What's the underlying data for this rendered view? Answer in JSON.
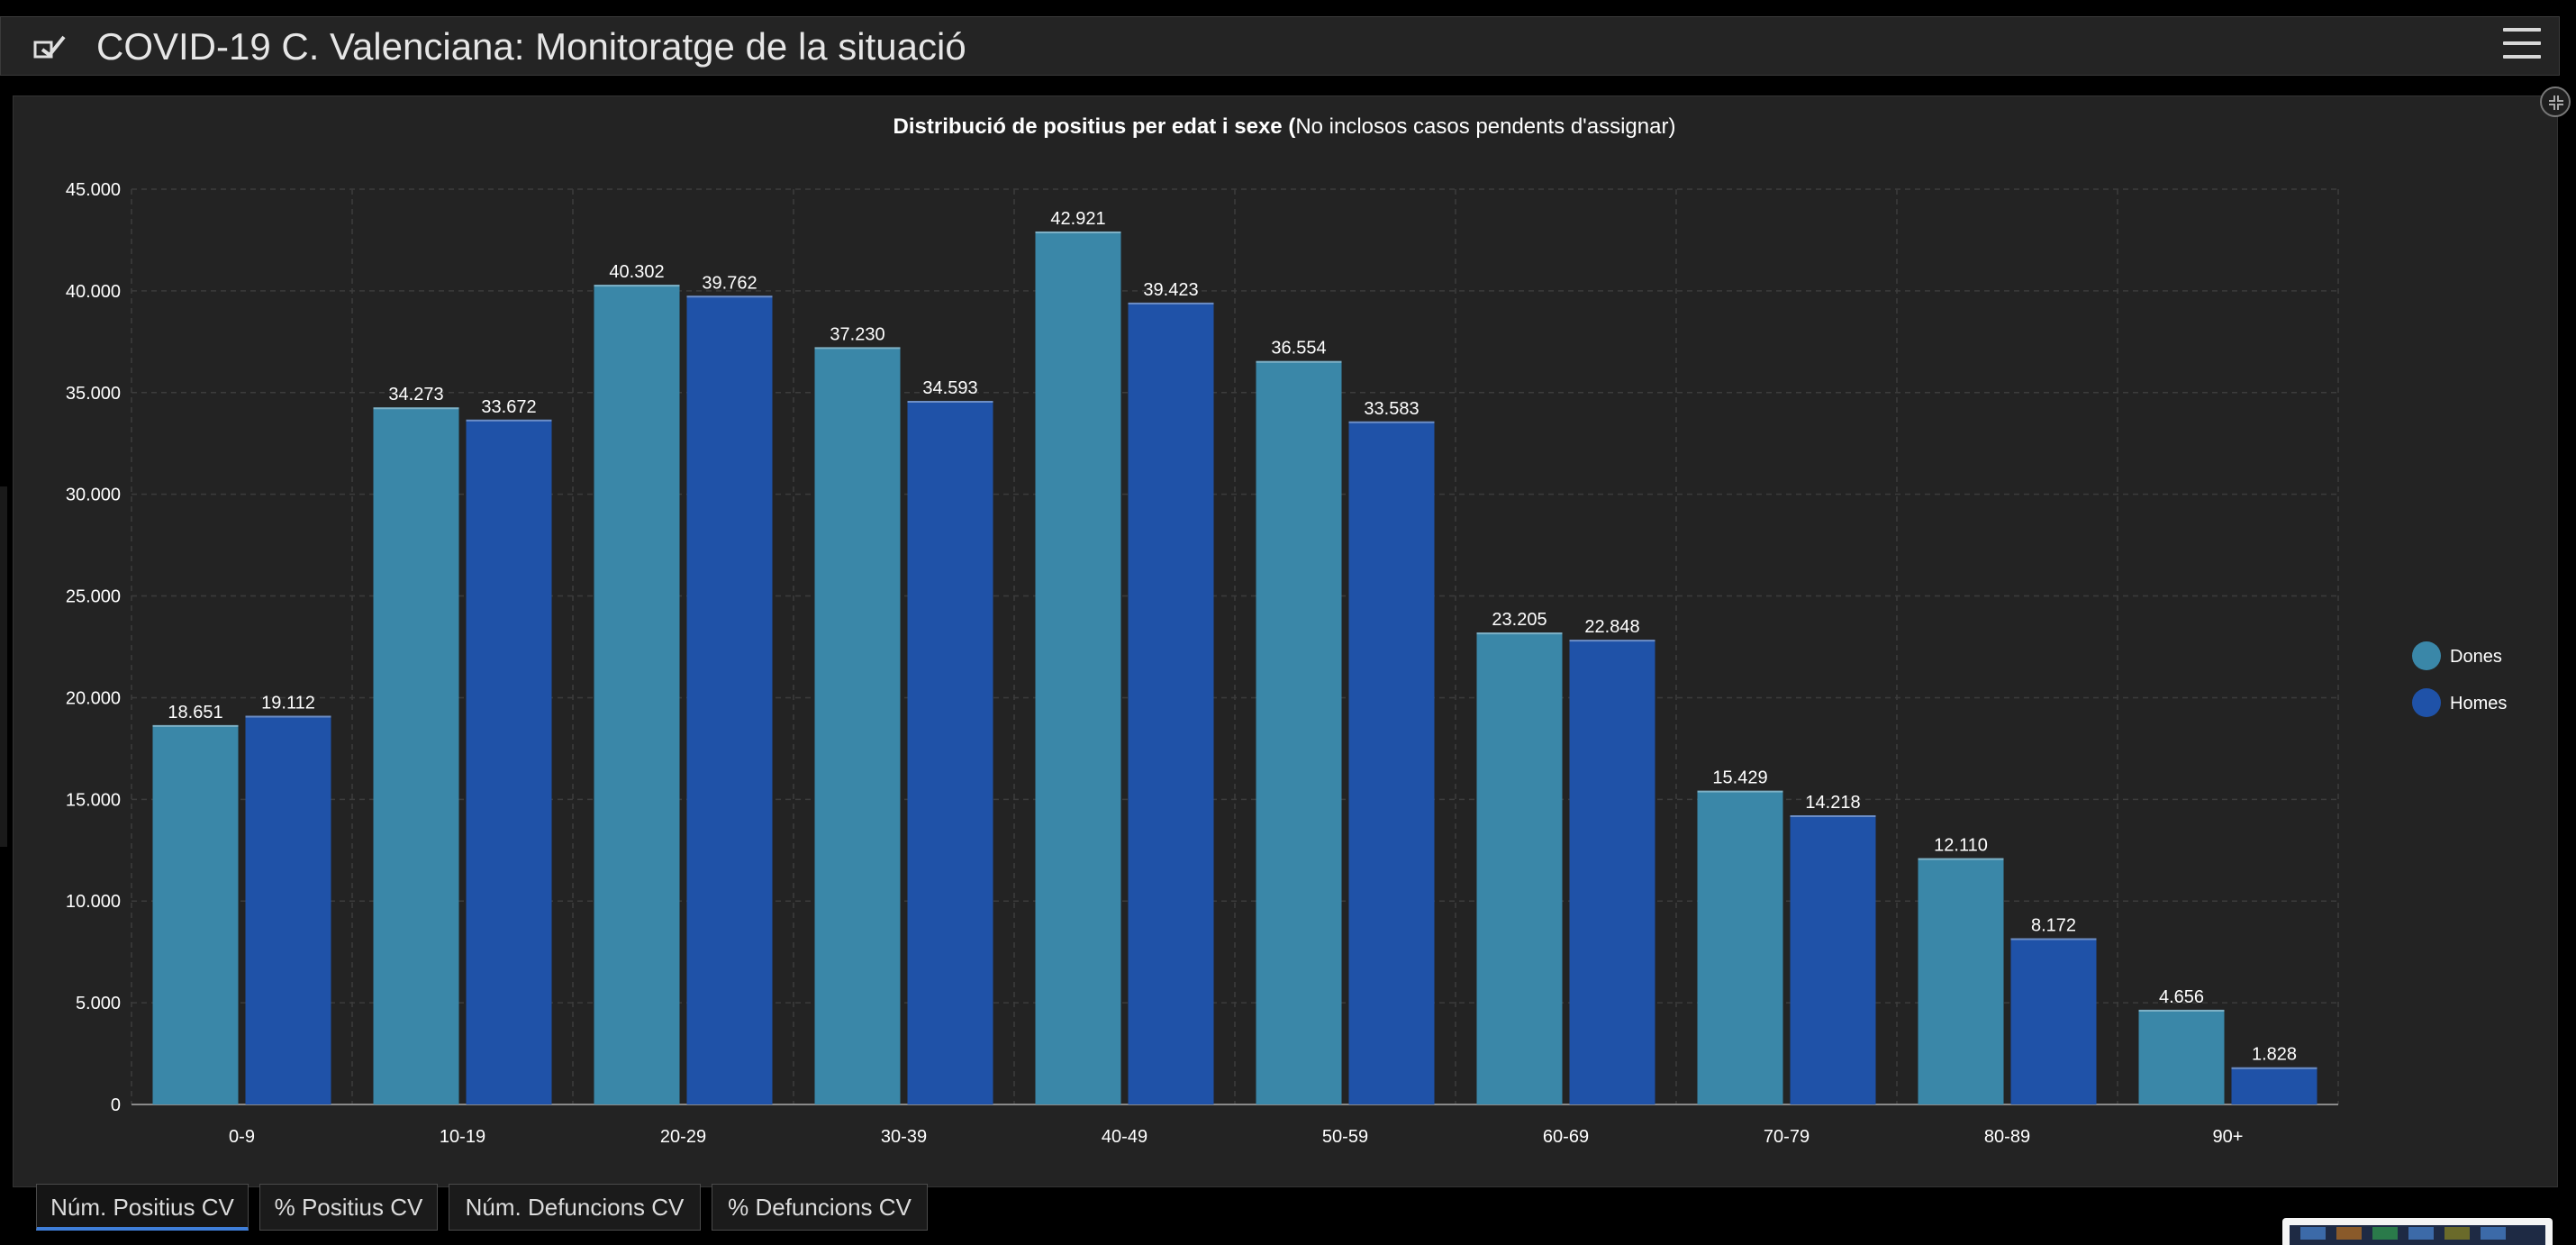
{
  "header": {
    "title": "COVID-19 C. Valenciana: Monitoratge de la situació",
    "icon": "app-logo-icon",
    "menu_icon": "hamburger-menu-icon"
  },
  "tabs": [
    {
      "label": "Núm. Positius CV",
      "active": true
    },
    {
      "label": "% Positius CV",
      "active": false
    },
    {
      "label": "Núm. Defuncions CV",
      "active": false
    },
    {
      "label": "% Defuncions CV",
      "active": false
    }
  ],
  "chart_data": {
    "type": "bar",
    "title_bold": "Distribució de positius per edat i sexe (",
    "title_regular": "No inclosos casos pendents d'assignar)",
    "xlabel": "",
    "ylabel": "",
    "ylim": [
      0,
      45000
    ],
    "grid": true,
    "legend_position": "right",
    "categories": [
      "0-9",
      "10-19",
      "20-29",
      "30-39",
      "40-49",
      "50-59",
      "60-69",
      "70-79",
      "80-89",
      "90+"
    ],
    "yticks": [
      "0",
      "5.000",
      "10.000",
      "15.000",
      "20.000",
      "25.000",
      "30.000",
      "35.000",
      "40.000",
      "45.000"
    ],
    "series": [
      {
        "name": "Dones",
        "color": "#3a87a8",
        "values": [
          18651,
          34273,
          40302,
          37230,
          42921,
          36554,
          23205,
          15429,
          12110,
          4656
        ],
        "labels": [
          "18.651",
          "34.273",
          "40.302",
          "37.230",
          "42.921",
          "36.554",
          "23.205",
          "15.429",
          "12.110",
          "4.656"
        ]
      },
      {
        "name": "Homes",
        "color": "#1f52a8",
        "values": [
          19112,
          33672,
          39762,
          34593,
          39423,
          33583,
          22848,
          14218,
          8172,
          1828
        ],
        "labels": [
          "19.112",
          "33.672",
          "39.762",
          "34.593",
          "39.423",
          "33.583",
          "22.848",
          "14.218",
          "8.172",
          "1.828"
        ]
      }
    ]
  }
}
